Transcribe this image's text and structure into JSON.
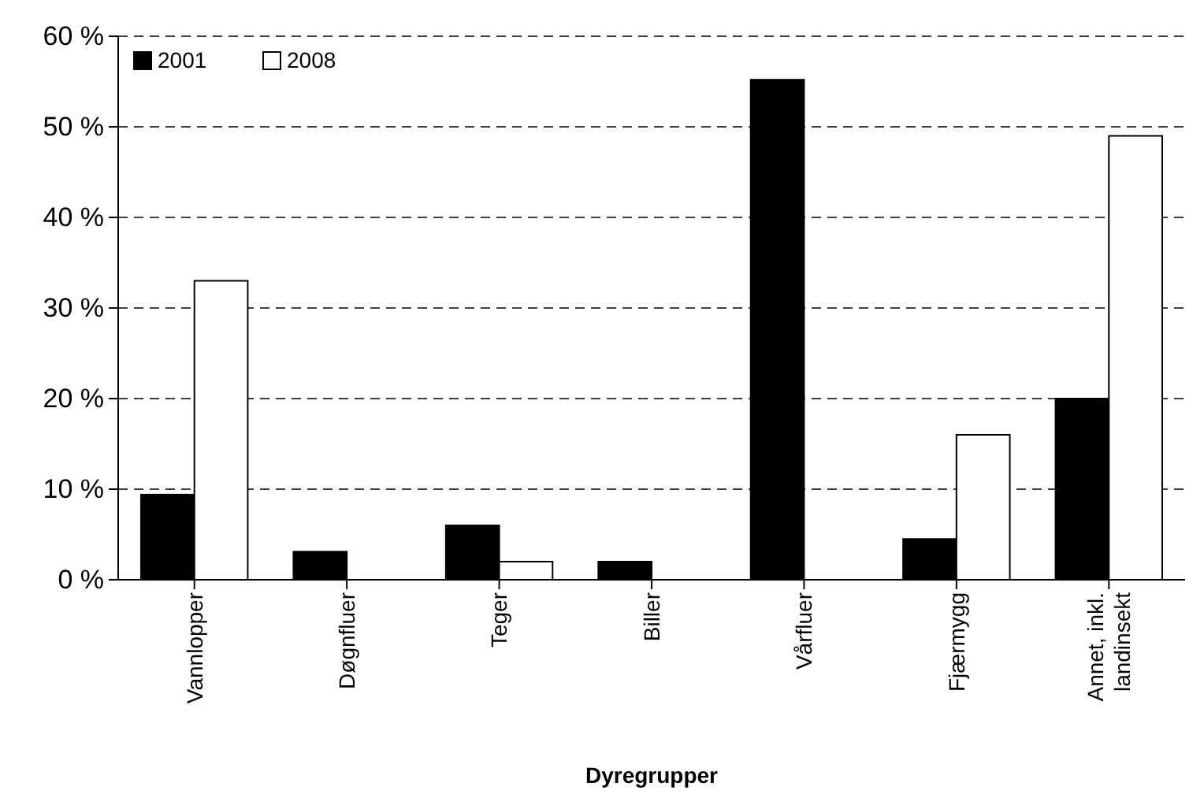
{
  "chart_data": {
    "type": "bar",
    "xlabel": "Dyregrupper",
    "categories": [
      "Vannlopper",
      "Døgnfluer",
      "Teger",
      "Biller",
      "Vårfluer",
      "Fjærmygg",
      "Annet, inkl. landinsekt"
    ],
    "series": [
      {
        "name": "2001",
        "color": "#000000",
        "values": [
          9.4,
          3.1,
          6,
          2,
          55.2,
          4.5,
          20
        ]
      },
      {
        "name": "2008",
        "color": "#ffffff",
        "values": [
          33,
          0,
          2,
          0,
          0,
          16,
          49
        ]
      }
    ],
    "ylim": [
      0,
      60
    ],
    "yticks": [
      {
        "value": 0,
        "label": "0 %"
      },
      {
        "value": 10,
        "label": "10 %"
      },
      {
        "value": 20,
        "label": "20 %"
      },
      {
        "value": 30,
        "label": "30 %"
      },
      {
        "value": 40,
        "label": "40 %"
      },
      {
        "value": 50,
        "label": "50 %"
      },
      {
        "value": 60,
        "label": "60 %"
      }
    ],
    "grid": "y",
    "legend": "top left",
    "line_style": "dashed"
  }
}
